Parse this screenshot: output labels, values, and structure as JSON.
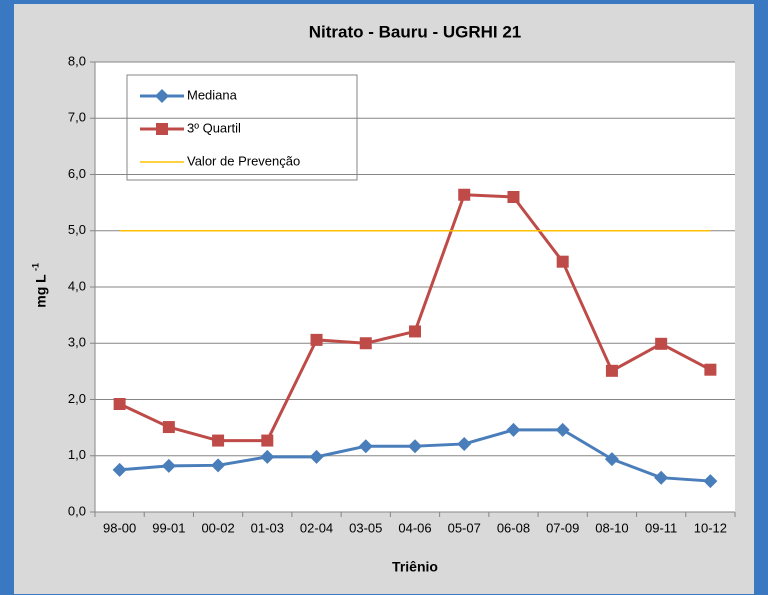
{
  "chart_data": {
    "type": "line",
    "title": "Nitrato - Bauru - UGRHI 21",
    "x_label": "Triênio",
    "y_label": "mg L",
    "y_label_sup": "-1",
    "categories": [
      "98-00",
      "99-01",
      "00-02",
      "01-03",
      "02-04",
      "03-05",
      "04-06",
      "05-07",
      "06-08",
      "07-09",
      "08-10",
      "09-11",
      "10-12"
    ],
    "series": [
      {
        "name": "Mediana",
        "color": "#4a7ebb",
        "marker": "diamond",
        "values": [
          0.75,
          0.82,
          0.83,
          0.98,
          0.98,
          1.17,
          1.17,
          1.21,
          1.46,
          1.46,
          0.94,
          0.61,
          0.55
        ]
      },
      {
        "name": "3º Quartil",
        "color": "#be4b48",
        "marker": "square",
        "values": [
          1.92,
          1.51,
          1.27,
          1.27,
          3.06,
          3.0,
          3.21,
          5.64,
          5.6,
          4.45,
          2.51,
          2.99,
          2.53
        ]
      },
      {
        "name": "Valor de Prevenção",
        "color": "#ffc000",
        "marker": null,
        "values": [
          5,
          5,
          5,
          5,
          5,
          5,
          5,
          5,
          5,
          5,
          5,
          5,
          5
        ]
      }
    ],
    "ylim": [
      0,
      8
    ],
    "yticks": [
      {
        "value": 0,
        "label": "0,0"
      },
      {
        "value": 1,
        "label": "1,0"
      },
      {
        "value": 2,
        "label": "2,0"
      },
      {
        "value": 3,
        "label": "3,0"
      },
      {
        "value": 4,
        "label": "4,0"
      },
      {
        "value": 5,
        "label": "5,0"
      },
      {
        "value": 6,
        "label": "6,0"
      },
      {
        "value": 7,
        "label": "7,0"
      },
      {
        "value": 8,
        "label": "8,0"
      }
    ],
    "grid": true,
    "legend": "top-left"
  }
}
